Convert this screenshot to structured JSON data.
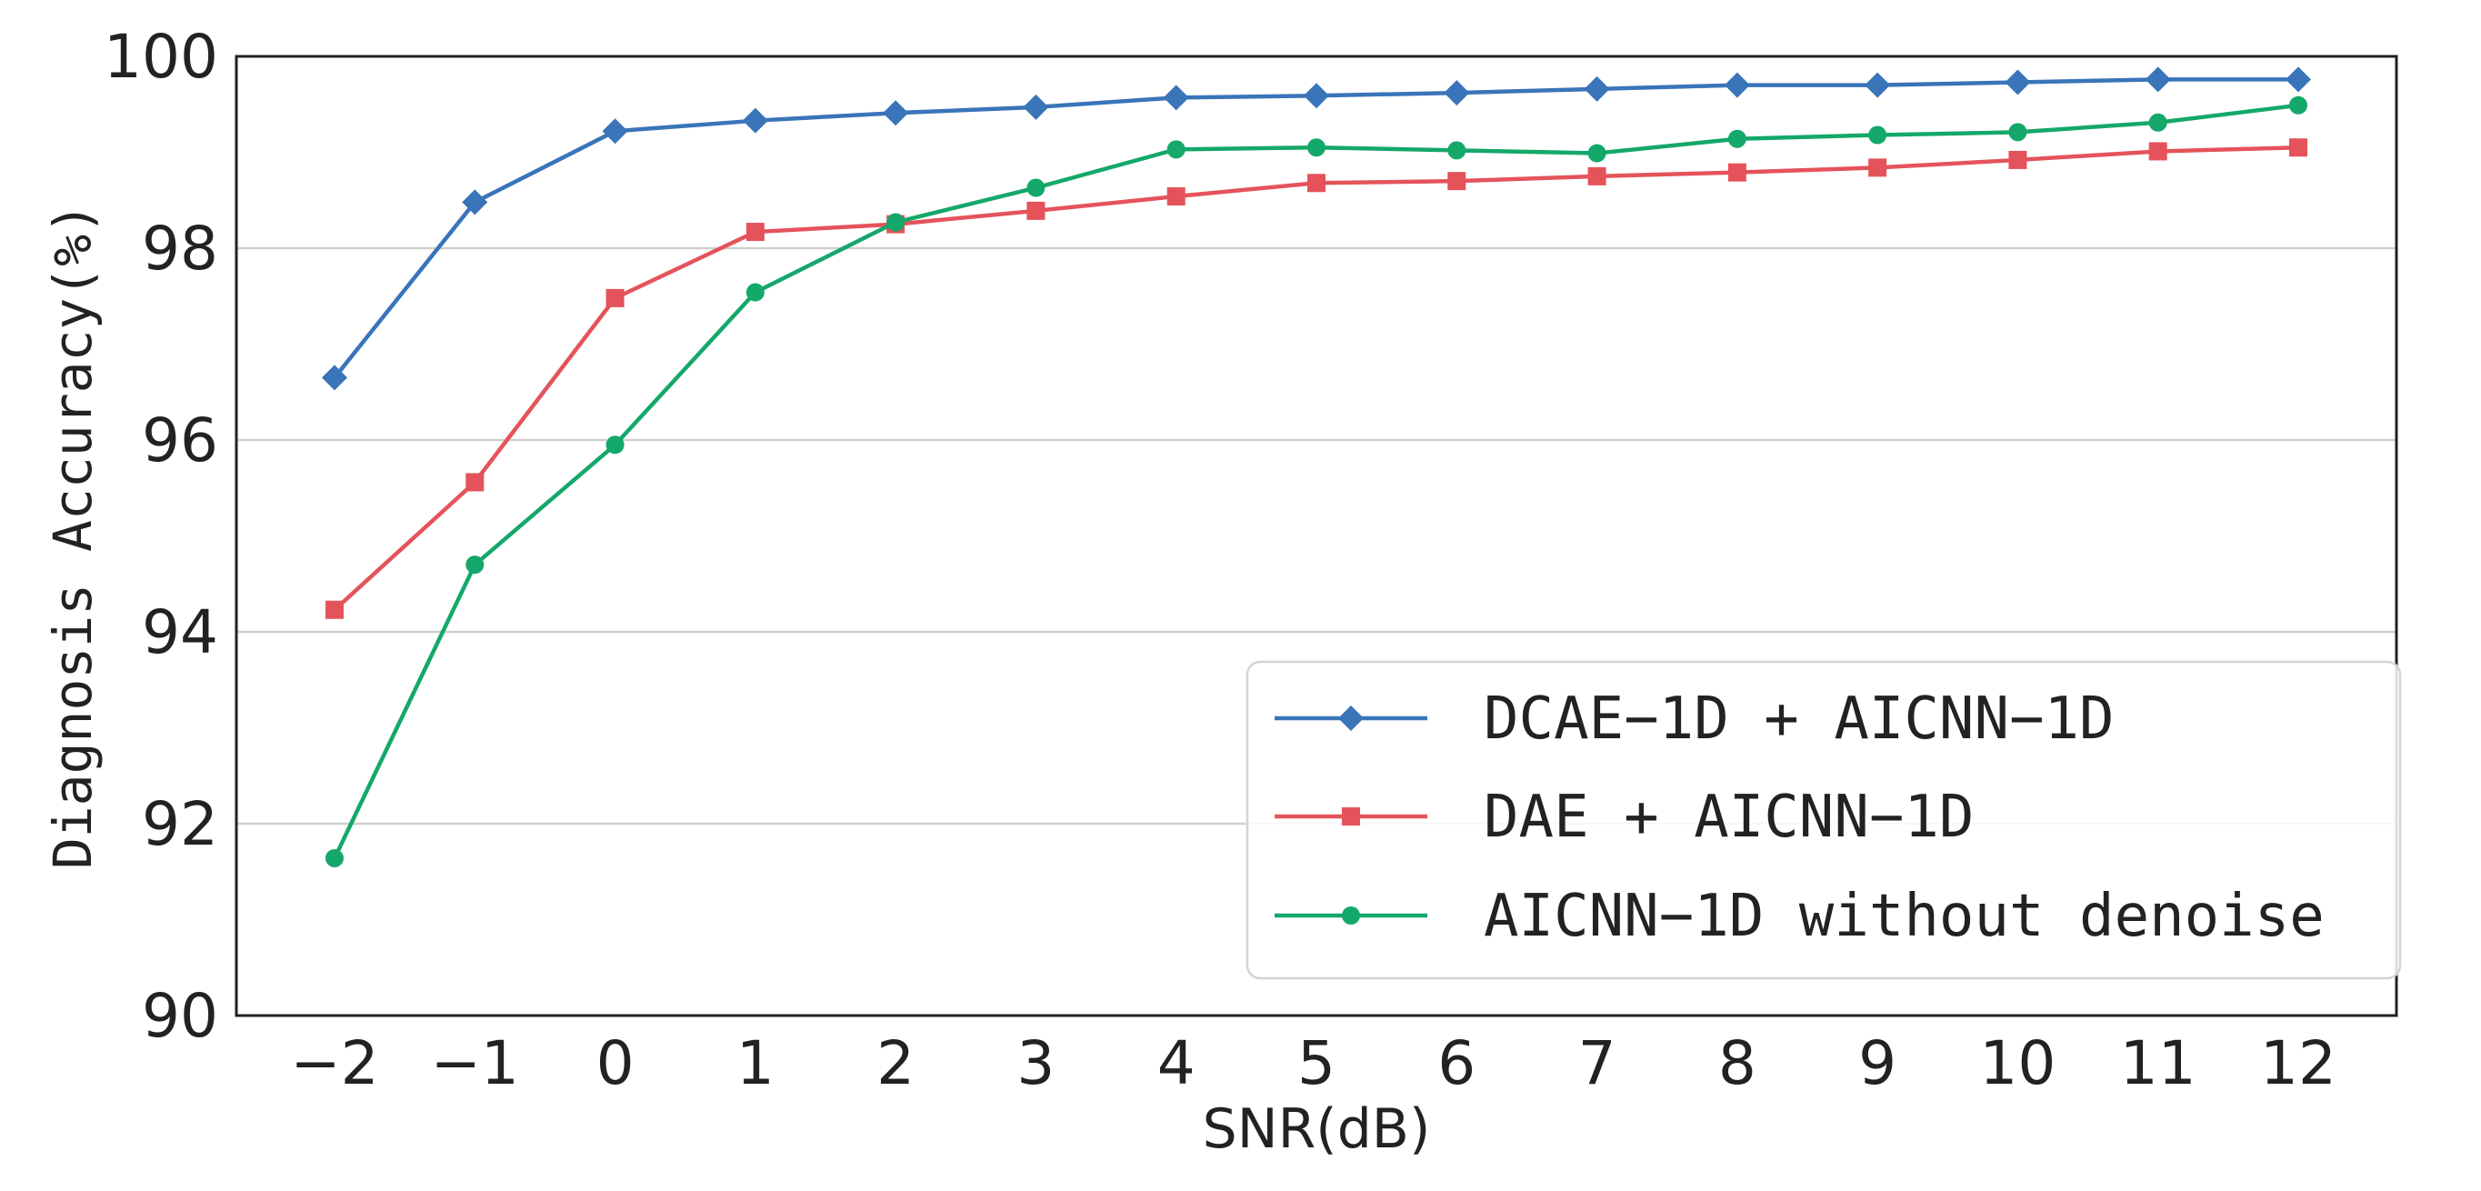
{
  "chart_data": {
    "type": "line",
    "title": "",
    "xlabel": "SNR(dB)",
    "ylabel": "Diagnosis Accuracy(%)",
    "x": [
      -2,
      -1,
      0,
      1,
      2,
      3,
      4,
      5,
      6,
      7,
      8,
      9,
      10,
      11,
      12
    ],
    "x_tick_labels": [
      "−2",
      "−1",
      "0",
      "1",
      "2",
      "3",
      "4",
      "5",
      "6",
      "7",
      "8",
      "9",
      "10",
      "11",
      "12"
    ],
    "xlim": [
      -2.7,
      12.7
    ],
    "ylim": [
      90,
      100
    ],
    "y_ticks": [
      90,
      92,
      94,
      96,
      98,
      100
    ],
    "y_tick_labels": [
      "90",
      "92",
      "94",
      "96",
      "98",
      "100"
    ],
    "grid": "horizontal",
    "legend_position": "lower-right",
    "series": [
      {
        "name": "DCAE−1D + AICNN−1D",
        "color": "#3a74b9",
        "marker": "diamond",
        "values": [
          96.65,
          98.48,
          99.22,
          99.33,
          99.41,
          99.47,
          99.57,
          99.59,
          99.62,
          99.66,
          99.7,
          99.7,
          99.73,
          99.76,
          99.76
        ]
      },
      {
        "name": "DAE + AICNN−1D",
        "color": "#e5535a",
        "marker": "square",
        "values": [
          94.23,
          95.56,
          97.48,
          98.17,
          98.25,
          98.39,
          98.54,
          98.68,
          98.7,
          98.75,
          98.79,
          98.84,
          98.92,
          99.01,
          99.05
        ]
      },
      {
        "name": "AICNN−1D without denoise",
        "color": "#14a86a",
        "marker": "circle",
        "values": [
          91.64,
          94.7,
          95.95,
          97.54,
          98.27,
          98.63,
          99.03,
          99.05,
          99.02,
          98.99,
          99.14,
          99.18,
          99.21,
          99.31,
          99.49
        ]
      }
    ]
  }
}
